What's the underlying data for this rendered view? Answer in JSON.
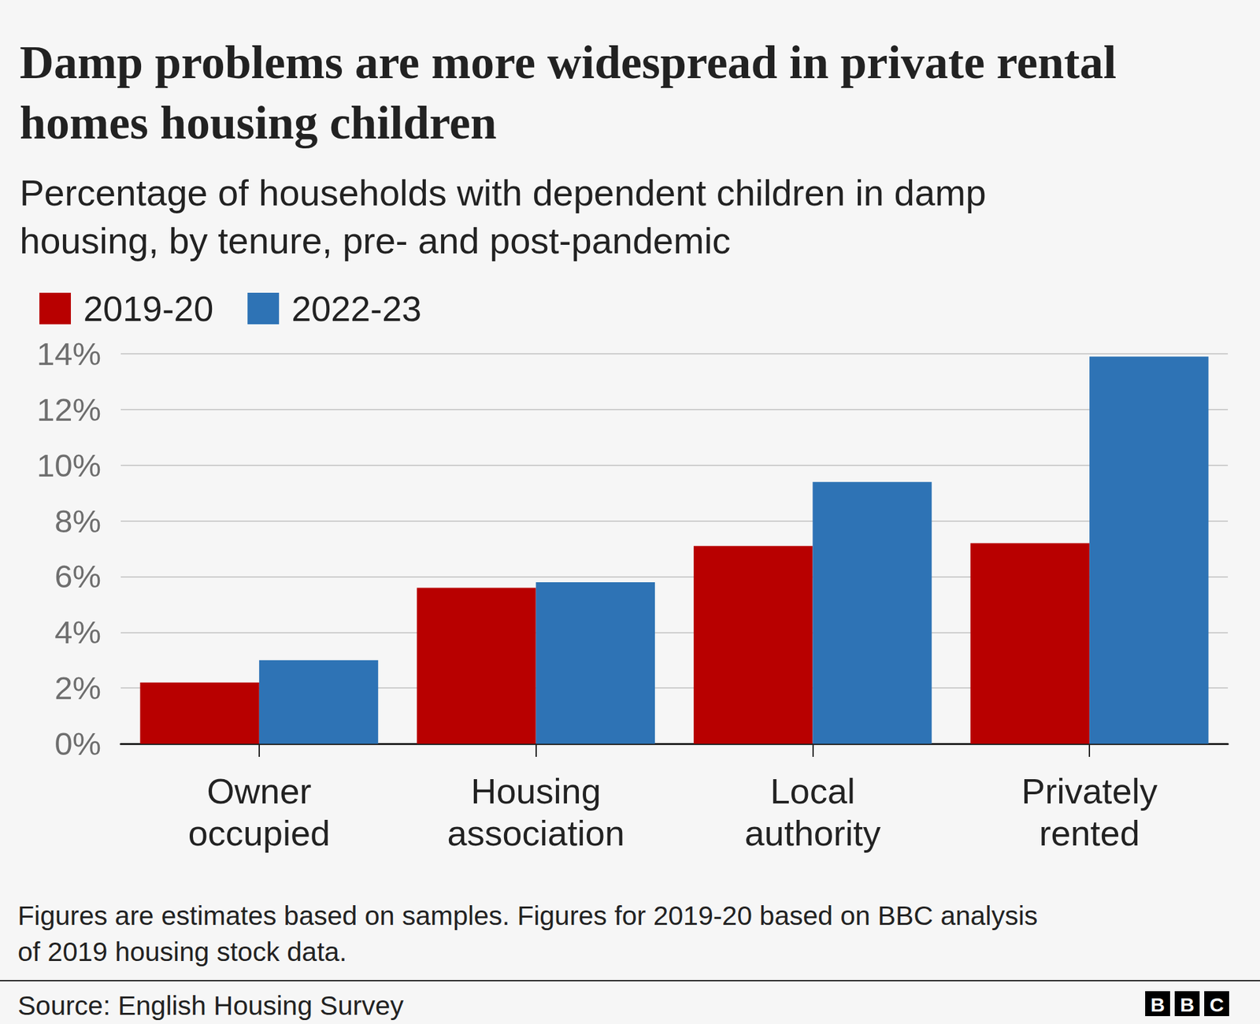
{
  "chart_data": {
    "type": "bar",
    "title": "Damp problems are more widespread in private rental homes housing children",
    "subtitle": "Percentage of households with dependent children in damp housing, by tenure, pre- and post-pandemic",
    "note": "Figures are estimates based on samples. Figures for 2019-20 based on BBC analysis of 2019 housing stock data.",
    "source": "Source: English Housing Survey",
    "logo": "BBC",
    "categories": [
      "Owner occupied",
      "Housing association",
      "Local authority",
      "Privately rented"
    ],
    "series": [
      {
        "name": "2019-20",
        "color": "#b80000",
        "values": [
          2.2,
          5.6,
          7.1,
          7.2
        ]
      },
      {
        "name": "2022-23",
        "color": "#2e73b5",
        "values": [
          3.0,
          5.8,
          9.4,
          13.9
        ]
      }
    ],
    "ylim": [
      0,
      14
    ],
    "yticks": [
      {
        "value": 0,
        "label": "0%"
      },
      {
        "value": 2,
        "label": "2%"
      },
      {
        "value": 4,
        "label": "4%"
      },
      {
        "value": 6,
        "label": "6%"
      },
      {
        "value": 8,
        "label": "8%"
      },
      {
        "value": 10,
        "label": "10%"
      },
      {
        "value": 12,
        "label": "12%"
      },
      {
        "value": 14,
        "label": "14%"
      }
    ],
    "grid": true,
    "legend": "top-left"
  }
}
